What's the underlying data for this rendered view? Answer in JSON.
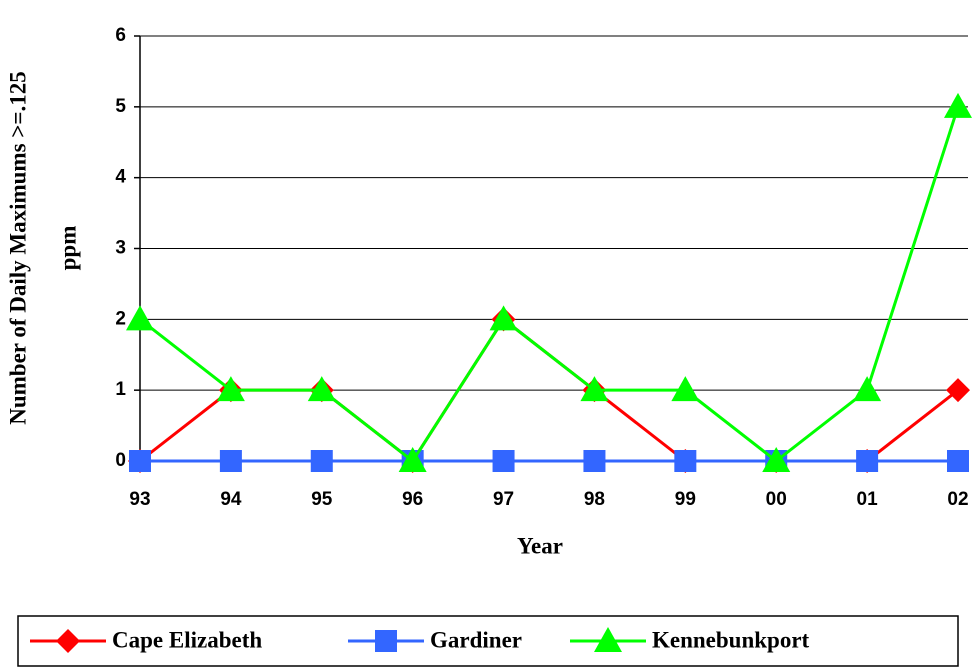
{
  "chart_data": {
    "type": "line",
    "y_label": [
      "Number of Daily Maximums >=.125",
      "ppm"
    ],
    "x_label": "Year",
    "categories": [
      "93",
      "94",
      "95",
      "96",
      "97",
      "98",
      "99",
      "00",
      "01",
      "02"
    ],
    "series": [
      {
        "name": "Cape Elizabeth",
        "color": "#ff0000",
        "marker": "diamond",
        "values": [
          0,
          1,
          1,
          0,
          2,
          1,
          0,
          0,
          0,
          1
        ]
      },
      {
        "name": "Gardiner",
        "color": "#3366ff",
        "marker": "square",
        "values": [
          0,
          0,
          0,
          0,
          0,
          0,
          0,
          0,
          0,
          0
        ]
      },
      {
        "name": "Kennebunkport",
        "color": "#00ff00",
        "marker": "triangle",
        "values": [
          2,
          1,
          1,
          0,
          2,
          1,
          1,
          0,
          1,
          5
        ]
      }
    ],
    "ylim": [
      0,
      6
    ],
    "yticks": [
      0,
      1,
      2,
      3,
      4,
      5,
      6
    ],
    "grid": true,
    "legend": "bottom"
  }
}
